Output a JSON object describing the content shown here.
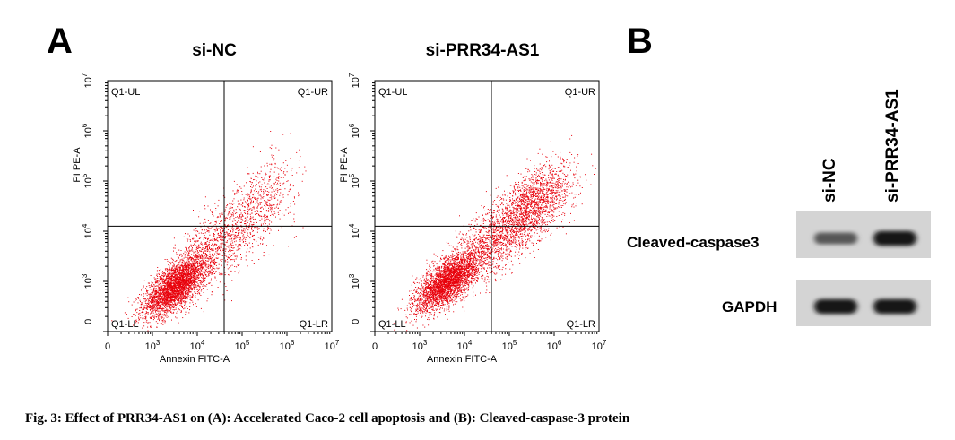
{
  "panel_a_label": "A",
  "panel_b_label": "B",
  "caption": "Fig. 3: Effect of PRR34-AS1 on (A): Accelerated Caco-2 cell apoptosis and (B): Cleaved-caspase-3 protein",
  "chart_data": [
    {
      "type": "scatter",
      "title": "si-NC",
      "xlabel": "Annexin FITC-A",
      "ylabel": "PI PE-A",
      "x_ticks": [
        "0",
        "10^3",
        "10^4",
        "10^5",
        "10^6",
        "10^7"
      ],
      "y_ticks": [
        "0",
        "10^3",
        "10^4",
        "10^5",
        "10^6",
        "10^7"
      ],
      "xlim": [
        "0",
        "10^7"
      ],
      "ylim": [
        "0",
        "10^7"
      ],
      "quadrant_gate": {
        "x": "10^4.6",
        "y": "10^4.1"
      },
      "quadrants": [
        "Q1-UL",
        "Q1-UR",
        "Q1-LL",
        "Q1-LR"
      ],
      "point_color": "#e8000b",
      "populations": [
        {
          "center_log": [
            3.5,
            2.9
          ],
          "spread": [
            0.35,
            0.22
          ],
          "count": 3200
        },
        {
          "center_log": [
            4.3,
            3.6
          ],
          "spread": [
            0.45,
            0.35
          ],
          "count": 900
        },
        {
          "center_log": [
            5.3,
            4.5
          ],
          "spread": [
            0.45,
            0.4
          ],
          "count": 700
        }
      ]
    },
    {
      "type": "scatter",
      "title": "si-PRR34-AS1",
      "xlabel": "Annexin FITC-A",
      "ylabel": "PI PE-A",
      "x_ticks": [
        "0",
        "10^3",
        "10^4",
        "10^5",
        "10^6",
        "10^7"
      ],
      "y_ticks": [
        "0",
        "10^3",
        "10^4",
        "10^5",
        "10^6",
        "10^7"
      ],
      "xlim": [
        "0",
        "10^7"
      ],
      "ylim": [
        "0",
        "10^7"
      ],
      "quadrant_gate": {
        "x": "10^4.6",
        "y": "10^4.1"
      },
      "quadrants": [
        "Q1-UL",
        "Q1-UR",
        "Q1-LL",
        "Q1-LR"
      ],
      "point_color": "#e8000b",
      "populations": [
        {
          "center_log": [
            3.6,
            3.0
          ],
          "spread": [
            0.35,
            0.22
          ],
          "count": 3000
        },
        {
          "center_log": [
            4.5,
            3.7
          ],
          "spread": [
            0.45,
            0.35
          ],
          "count": 1000
        },
        {
          "center_log": [
            5.5,
            4.5
          ],
          "spread": [
            0.45,
            0.35
          ],
          "count": 1800
        }
      ]
    }
  ],
  "blot": {
    "lanes": [
      "si-NC",
      "si-PRR34-AS1"
    ],
    "rows": [
      {
        "label": "Cleaved-caspase3",
        "intensities": [
          0.55,
          0.95
        ]
      },
      {
        "label": "GAPDH",
        "intensities": [
          0.95,
          0.95
        ]
      }
    ]
  }
}
